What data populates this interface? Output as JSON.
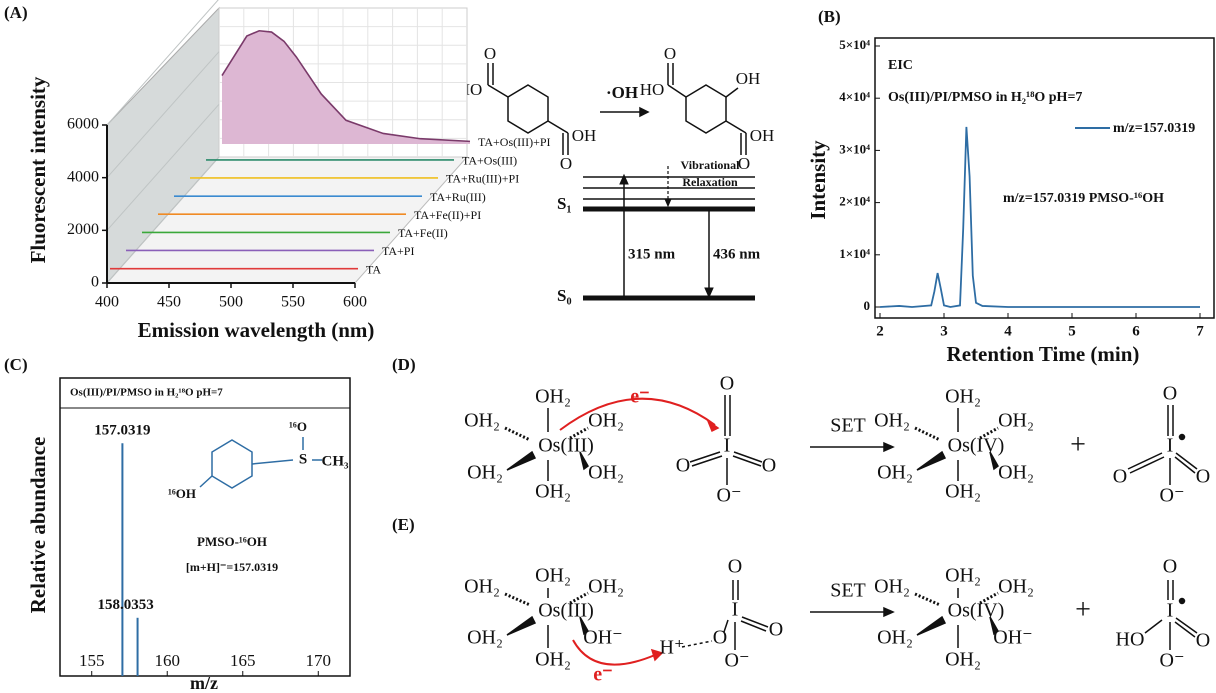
{
  "panel_labels": {
    "a": "(A)",
    "b": "(B)",
    "c": "(C)",
    "d": "(D)",
    "e": "(E)"
  },
  "chart_data": [
    {
      "type": "waterfall",
      "xlabel": "Emission wavelength (nm)",
      "ylabel": "Fluorescent intensity",
      "x": [
        400,
        420,
        430,
        440,
        450,
        460,
        480,
        500,
        530,
        560,
        600
      ],
      "xlim": [
        400,
        600
      ],
      "xticks": [
        400,
        450,
        500,
        550,
        600
      ],
      "ylim": [
        0,
        6000
      ],
      "yticks": [
        0,
        2000,
        4000,
        6000
      ],
      "series": [
        {
          "name": "TA",
          "color": "#e03a3a",
          "values": [
            50,
            50,
            50,
            50,
            50,
            50,
            50,
            50,
            50,
            50,
            50
          ]
        },
        {
          "name": "TA+PI",
          "color": "#8a5fb8",
          "values": [
            60,
            60,
            60,
            60,
            60,
            60,
            60,
            60,
            60,
            60,
            60
          ]
        },
        {
          "name": "TA+Fe(II)",
          "color": "#3aa83a",
          "values": [
            60,
            60,
            60,
            60,
            60,
            60,
            60,
            60,
            60,
            60,
            60
          ]
        },
        {
          "name": "TA+Fe(II)+PI",
          "color": "#f08a24",
          "values": [
            70,
            70,
            70,
            70,
            70,
            70,
            70,
            70,
            70,
            70,
            70
          ]
        },
        {
          "name": "TA+Ru(III)",
          "color": "#3a8ad0",
          "values": [
            70,
            70,
            70,
            70,
            70,
            70,
            70,
            70,
            70,
            70,
            70
          ]
        },
        {
          "name": "TA+Ru(III)+PI",
          "color": "#f0c020",
          "values": [
            80,
            80,
            80,
            80,
            80,
            80,
            80,
            80,
            80,
            80,
            80
          ]
        },
        {
          "name": "TA+Os(III)",
          "color": "#2a8a6a",
          "values": [
            80,
            80,
            80,
            80,
            80,
            80,
            80,
            80,
            80,
            80,
            80
          ]
        },
        {
          "name": "TA+Os(III)+PI",
          "color": "#7a3a6a",
          "fill": "#ddb7d3",
          "values": [
            2600,
            4100,
            4300,
            4250,
            3900,
            3300,
            1900,
            900,
            400,
            200,
            100
          ]
        }
      ]
    },
    {
      "type": "line",
      "xlabel": "Retention Time (min)",
      "ylabel": "Intensity",
      "annotations": [
        "EIC",
        "Os(III)/PI/PMSO in H₂¹⁸O pH=7",
        "m/z=157.0319 PMSO-¹⁶OH"
      ],
      "xlim": [
        2,
        7
      ],
      "xticks": [
        2,
        3,
        4,
        5,
        6,
        7
      ],
      "ylim": [
        0,
        50000
      ],
      "yticks": [
        0,
        {
          "value": 10000,
          "label": "1×10⁴"
        },
        {
          "value": 20000,
          "label": "2×10⁴"
        },
        {
          "value": 30000,
          "label": "3×10⁴"
        },
        {
          "value": 40000,
          "label": "4×10⁴"
        },
        {
          "value": 50000,
          "label": "5×10⁴"
        }
      ],
      "series": [
        {
          "name": "m/z=157.0319",
          "color": "#2e6da4",
          "x": [
            2,
            2.3,
            2.5,
            2.8,
            2.85,
            2.9,
            2.95,
            3.0,
            3.1,
            3.25,
            3.3,
            3.35,
            3.4,
            3.45,
            3.5,
            3.6,
            4,
            5,
            6,
            7
          ],
          "values": [
            0,
            200,
            0,
            300,
            3000,
            6500,
            3500,
            300,
            0,
            300,
            15000,
            34500,
            25000,
            6000,
            800,
            200,
            0,
            0,
            0,
            0
          ]
        }
      ]
    },
    {
      "type": "stem",
      "xlabel": "m/z",
      "ylabel": "Relative abundance",
      "annotations": [
        "Os(III)/PI/PMSO in H₂¹⁸O pH=7",
        "PMSO-¹⁶OH",
        "[m+H]⁻=157.0319",
        "¹⁶O",
        "S",
        "CH₃",
        "¹⁶OH"
      ],
      "xlim": [
        152.9,
        172.1
      ],
      "xticks": [
        155,
        160,
        165,
        170
      ],
      "ylim": [
        0,
        128
      ],
      "color": "#2e6da4",
      "x": [
        157.0319,
        158.0353
      ],
      "values": [
        100,
        25
      ]
    }
  ],
  "scheme_a": {
    "texts": [
      "HO",
      "O",
      "O",
      "OH",
      "·OH",
      "HO",
      "O",
      "O",
      "OH",
      "OH"
    ]
  },
  "jablonski": {
    "relaxation": [
      "Vibrational",
      "Relaxation"
    ],
    "s1": "S₁",
    "s0": "S₀",
    "excitation": "315 nm",
    "emission": "436 nm"
  },
  "scheme_d": {
    "texts": [
      "OH₂",
      "OH₂",
      "OH₂",
      "Os(III)",
      "OH₂",
      "OH₂",
      "OH₂",
      "e⁻",
      "O",
      "O",
      "I",
      "O",
      "O⁻",
      "SET",
      "OH₂",
      "OH₂",
      "OH₂",
      "Os(IV)",
      "OH₂",
      "OH₂",
      "OH₂",
      "+",
      "O",
      "O",
      "I",
      "O",
      "O⁻"
    ]
  },
  "scheme_e": {
    "texts": [
      "OH₂",
      "OH₂",
      "OH₂",
      "Os(III)",
      "OH₂",
      "OH⁻",
      "OH₂",
      "e⁻",
      "H⁺",
      "O",
      "O",
      "I",
      "O",
      "O⁻",
      "SET",
      "OH₂",
      "OH₂",
      "OH₂",
      "Os(IV)",
      "OH₂",
      "OH⁻",
      "OH₂",
      "+",
      "O",
      "HO",
      "I",
      "O",
      "O⁻"
    ]
  }
}
